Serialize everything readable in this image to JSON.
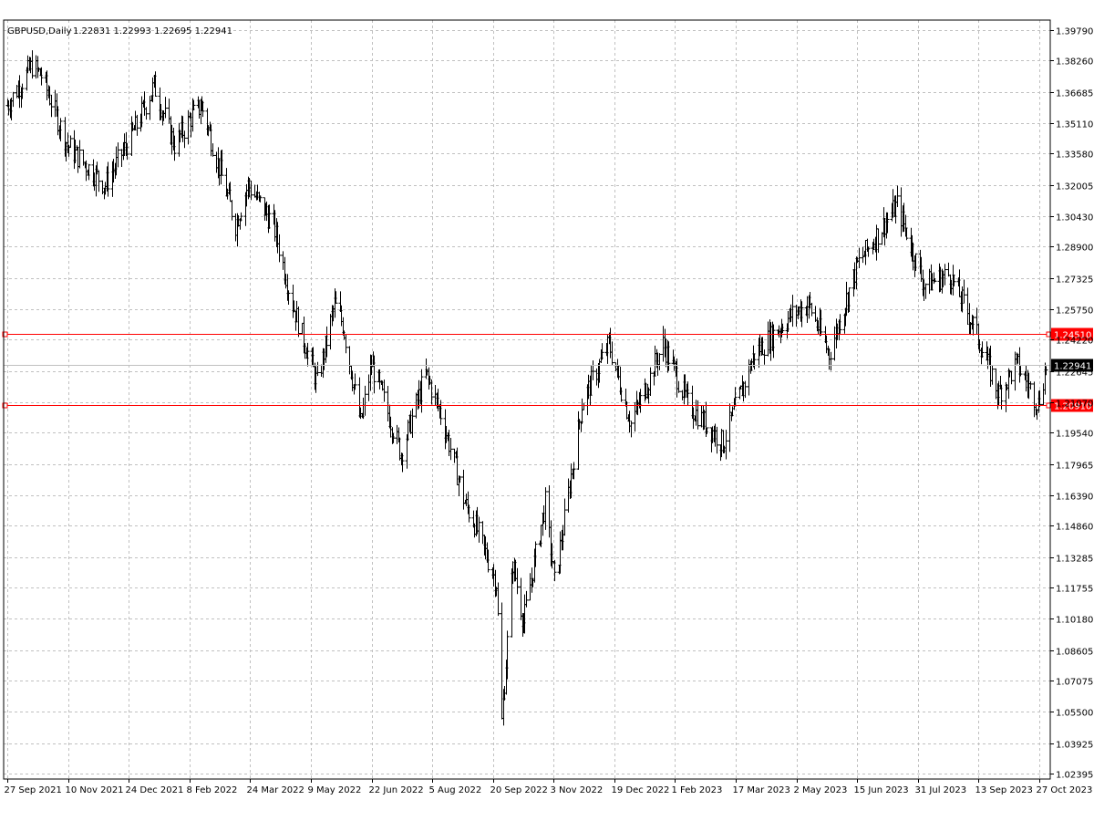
{
  "header": {
    "symbol": "GBPUSD,Daily",
    "ohlc": "1.22831 1.22993 1.22695 1.22941"
  },
  "colors": {
    "background": "#ffffff",
    "grid": "#c0c0c0",
    "bars": "#000000",
    "level_line": "#ff0000",
    "current_price_line": "#c0c0c0",
    "current_price_tag": "#000000"
  },
  "chart_data": {
    "type": "ohlc",
    "title": "GBPUSD,Daily",
    "legend_text": "1.22831 1.22993 1.22695 1.22941",
    "y_ticks": [
      "1.39790",
      "1.38260",
      "1.36685",
      "1.35110",
      "1.33580",
      "1.32005",
      "1.30430",
      "1.28900",
      "1.27325",
      "1.25750",
      "1.24220",
      "1.22645",
      "1.21070",
      "1.19540",
      "1.17965",
      "1.16390",
      "1.14860",
      "1.13285",
      "1.11755",
      "1.10180",
      "1.08605",
      "1.07075",
      "1.05500",
      "1.03925",
      "1.02395"
    ],
    "ylim": [
      1.02395,
      1.3979
    ],
    "x_ticks": [
      "27 Sep 2021",
      "10 Nov 2021",
      "24 Dec 2021",
      "8 Feb 2022",
      "24 Mar 2022",
      "9 May 2022",
      "22 Jun 2022",
      "5 Aug 2022",
      "20 Sep 2022",
      "3 Nov 2022",
      "19 Dec 2022",
      "1 Feb 2023",
      "17 Mar 2023",
      "2 May 2023",
      "15 Jun 2023",
      "31 Jul 2023",
      "13 Sep 2023",
      "27 Oct 2023"
    ],
    "horizontal_lines": [
      {
        "value": 1.2451,
        "label": "1.24510",
        "color": "#ff0000"
      },
      {
        "value": 1.2091,
        "label": "1.20910",
        "color": "#ff0000"
      }
    ],
    "current_price": {
      "value": 1.22941,
      "label": "1.22941"
    },
    "grid": true,
    "price_path": [
      {
        "date": "2021-09-27",
        "close": 1.36
      },
      {
        "date": "2021-10-15",
        "close": 1.38
      },
      {
        "date": "2021-10-22",
        "close": 1.375
      },
      {
        "date": "2021-11-10",
        "close": 1.34
      },
      {
        "date": "2021-12-08",
        "close": 1.32
      },
      {
        "date": "2021-12-31",
        "close": 1.35
      },
      {
        "date": "2022-01-13",
        "close": 1.37
      },
      {
        "date": "2022-01-28",
        "close": 1.34
      },
      {
        "date": "2022-02-10",
        "close": 1.355
      },
      {
        "date": "2022-02-17",
        "close": 1.36
      },
      {
        "date": "2022-03-14",
        "close": 1.3
      },
      {
        "date": "2022-03-23",
        "close": 1.32
      },
      {
        "date": "2022-04-11",
        "close": 1.3
      },
      {
        "date": "2022-04-25",
        "close": 1.26
      },
      {
        "date": "2022-05-13",
        "close": 1.22
      },
      {
        "date": "2022-05-26",
        "close": 1.26
      },
      {
        "date": "2022-06-01",
        "close": 1.25
      },
      {
        "date": "2022-06-14",
        "close": 1.2
      },
      {
        "date": "2022-06-22",
        "close": 1.23
      },
      {
        "date": "2022-07-14",
        "close": 1.185
      },
      {
        "date": "2022-08-01",
        "close": 1.225
      },
      {
        "date": "2022-08-12",
        "close": 1.205
      },
      {
        "date": "2022-08-30",
        "close": 1.16
      },
      {
        "date": "2022-09-06",
        "close": 1.15
      },
      {
        "date": "2022-09-22",
        "close": 1.12
      },
      {
        "date": "2022-09-26",
        "close": 1.05
      },
      {
        "date": "2022-10-04",
        "close": 1.13
      },
      {
        "date": "2022-10-12",
        "close": 1.1
      },
      {
        "date": "2022-10-28",
        "close": 1.16
      },
      {
        "date": "2022-11-04",
        "close": 1.12
      },
      {
        "date": "2022-11-24",
        "close": 1.21
      },
      {
        "date": "2022-12-14",
        "close": 1.24
      },
      {
        "date": "2022-12-30",
        "close": 1.2
      },
      {
        "date": "2023-01-23",
        "close": 1.24
      },
      {
        "date": "2023-02-10",
        "close": 1.21
      },
      {
        "date": "2023-03-08",
        "close": 1.19
      },
      {
        "date": "2023-03-31",
        "close": 1.235
      },
      {
        "date": "2023-04-28",
        "close": 1.255
      },
      {
        "date": "2023-05-10",
        "close": 1.26
      },
      {
        "date": "2023-05-25",
        "close": 1.235
      },
      {
        "date": "2023-06-15",
        "close": 1.28
      },
      {
        "date": "2023-07-14",
        "close": 1.31
      },
      {
        "date": "2023-08-03",
        "close": 1.27
      },
      {
        "date": "2023-08-22",
        "close": 1.275
      },
      {
        "date": "2023-09-08",
        "close": 1.25
      },
      {
        "date": "2023-09-27",
        "close": 1.215
      },
      {
        "date": "2023-10-10",
        "close": 1.23
      },
      {
        "date": "2023-10-26",
        "close": 1.21
      },
      {
        "date": "2023-11-03",
        "close": 1.235
      },
      {
        "date": "2023-11-07",
        "close": 1.2294
      }
    ]
  }
}
